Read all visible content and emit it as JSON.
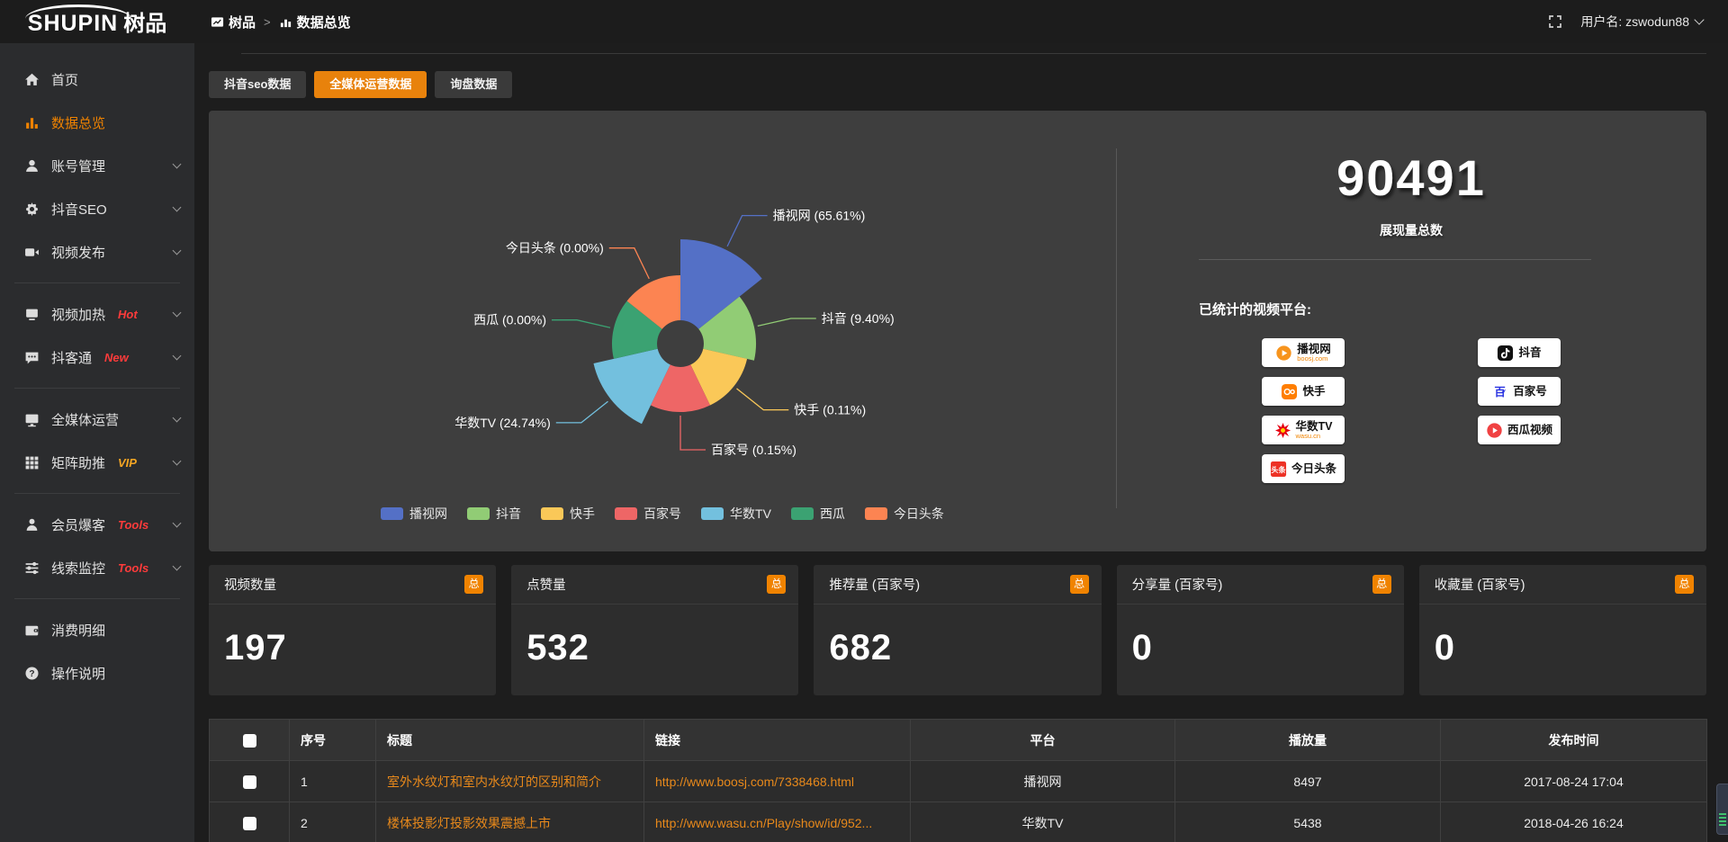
{
  "brand": {
    "logo_en": "SHUPIN",
    "logo_cn": "树品"
  },
  "header": {
    "breadcrumb": [
      {
        "label": "树品"
      },
      {
        "label": "数据总览"
      }
    ],
    "username": "用户名: zswodun88"
  },
  "sidebar": {
    "items": [
      {
        "label": "首页",
        "icon": "home-icon"
      },
      {
        "label": "数据总览",
        "icon": "chart-icon",
        "active": true
      },
      {
        "label": "账号管理",
        "icon": "user-icon",
        "chevron": true
      },
      {
        "label": "抖音SEO",
        "icon": "gear-icon",
        "chevron": true
      },
      {
        "label": "视频发布",
        "icon": "video-icon",
        "chevron": true,
        "divider_after": true
      },
      {
        "label": "视频加热",
        "icon": "heat-icon",
        "badge": "Hot",
        "badge_color": "#ff3b3b",
        "chevron": true
      },
      {
        "label": "抖客通",
        "icon": "chat-icon",
        "badge": "New",
        "badge_color": "#ff3b3b",
        "chevron": true,
        "divider_after": true
      },
      {
        "label": "全媒体运营",
        "icon": "screen-icon",
        "chevron": true
      },
      {
        "label": "矩阵助推",
        "icon": "grid-icon",
        "badge": "VIP",
        "badge_color": "#f5a623",
        "chevron": true,
        "divider_after": true
      },
      {
        "label": "会员爆客",
        "icon": "member-icon",
        "badge": "Tools",
        "badge_color": "#ff3b3b",
        "chevron": true
      },
      {
        "label": "线索监控",
        "icon": "sliders-icon",
        "badge": "Tools",
        "badge_color": "#ff3b3b",
        "chevron": true,
        "divider_after": true
      },
      {
        "label": "消费明细",
        "icon": "wallet-icon"
      },
      {
        "label": "操作说明",
        "icon": "help-icon"
      }
    ]
  },
  "tabs": [
    {
      "label": "抖音seo数据"
    },
    {
      "label": "全媒体运营数据",
      "active": true
    },
    {
      "label": "询盘数据"
    }
  ],
  "chart_data": {
    "type": "pie",
    "style": "rose",
    "inner_radius": 26,
    "legend_position": "bottom",
    "items": [
      {
        "name": "播视网",
        "pct": 65.61,
        "color": "#5470c6",
        "radius": 116
      },
      {
        "name": "抖音",
        "pct": 9.4,
        "color": "#91cc75",
        "radius": 84
      },
      {
        "name": "快手",
        "pct": 0.11,
        "color": "#fac858",
        "radius": 76
      },
      {
        "name": "百家号",
        "pct": 0.15,
        "color": "#ee6666",
        "radius": 76
      },
      {
        "name": "华数TV",
        "pct": 24.74,
        "color": "#73c0de",
        "radius": 99
      },
      {
        "name": "西瓜",
        "pct": 0.0,
        "color": "#3ba272",
        "radius": 76
      },
      {
        "name": "今日头条",
        "pct": 0.0,
        "color": "#fc8452",
        "radius": 76
      }
    ]
  },
  "summary": {
    "total_value": "90491",
    "total_label": "展现量总数",
    "platforms_label": "已统计的视频平台:",
    "platforms": [
      {
        "name": "播视网",
        "sub": "boosj.com",
        "logo": "boosj-logo"
      },
      {
        "name": "抖音",
        "logo": "douyin-logo"
      },
      {
        "name": "快手",
        "logo": "kuaishou-logo"
      },
      {
        "name": "百家号",
        "logo": "baijiahao-logo"
      },
      {
        "name": "华数TV",
        "sub": "wasu.cn",
        "logo": "wasu-logo"
      },
      {
        "name": "西瓜视频",
        "logo": "xigua-logo"
      },
      {
        "name": "今日头条",
        "logo": "toutiao-logo"
      }
    ]
  },
  "stats_cards": [
    {
      "title": "视频数量",
      "badge": "总",
      "value": "197"
    },
    {
      "title": "点赞量",
      "badge": "总",
      "value": "532"
    },
    {
      "title": "推荐量 (百家号)",
      "badge": "总",
      "value": "682"
    },
    {
      "title": "分享量 (百家号)",
      "badge": "总",
      "value": "0"
    },
    {
      "title": "收藏量 (百家号)",
      "badge": "总",
      "value": "0"
    }
  ],
  "table": {
    "columns": [
      "序号",
      "标题",
      "链接",
      "平台",
      "播放量",
      "发布时间"
    ],
    "rows": [
      {
        "index": "1",
        "title": "室外水纹灯和室内水纹灯的区别和简介",
        "link": "http://www.boosj.com/7338468.html",
        "platform": "播视网",
        "plays": "8497",
        "published": "2017-08-24 17:04"
      },
      {
        "index": "2",
        "title": "楼体投影灯投影效果震撼上市",
        "link": "http://www.wasu.cn/Play/show/id/952...",
        "platform": "华数TV",
        "plays": "5438",
        "published": "2018-04-26 16:24"
      }
    ]
  },
  "colors": {
    "accent": "#e8820c",
    "badge": "#f08300",
    "link": "#e8891b"
  }
}
